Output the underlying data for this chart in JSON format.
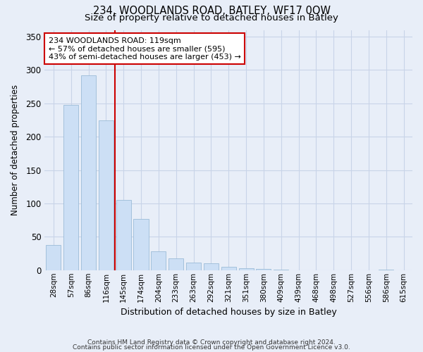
{
  "title_line1": "234, WOODLANDS ROAD, BATLEY, WF17 0QW",
  "title_line2": "Size of property relative to detached houses in Batley",
  "xlabel": "Distribution of detached houses by size in Batley",
  "ylabel": "Number of detached properties",
  "bar_labels": [
    "28sqm",
    "57sqm",
    "86sqm",
    "116sqm",
    "145sqm",
    "174sqm",
    "204sqm",
    "233sqm",
    "263sqm",
    "292sqm",
    "321sqm",
    "351sqm",
    "380sqm",
    "409sqm",
    "439sqm",
    "468sqm",
    "498sqm",
    "527sqm",
    "556sqm",
    "586sqm",
    "615sqm"
  ],
  "bar_values": [
    38,
    248,
    292,
    224,
    105,
    77,
    28,
    18,
    11,
    10,
    5,
    3,
    2,
    1,
    0,
    0,
    0,
    0,
    0,
    1,
    0
  ],
  "bar_color": "#ccdff5",
  "bar_edge_color": "#9bbcd8",
  "grid_color": "#c8d4e8",
  "background_color": "#e8eef8",
  "vline_color": "#cc0000",
  "annotation_text": "234 WOODLANDS ROAD: 119sqm\n← 57% of detached houses are smaller (595)\n43% of semi-detached houses are larger (453) →",
  "annotation_box_color": "#ffffff",
  "annotation_box_edge": "#cc0000",
  "ylim": [
    0,
    360
  ],
  "yticks": [
    0,
    50,
    100,
    150,
    200,
    250,
    300,
    350
  ],
  "footer_line1": "Contains HM Land Registry data © Crown copyright and database right 2024.",
  "footer_line2": "Contains public sector information licensed under the Open Government Licence v3.0."
}
